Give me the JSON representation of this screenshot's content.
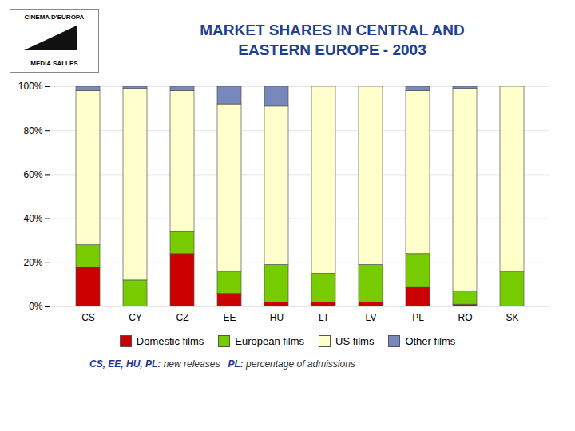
{
  "chart_data": {
    "type": "bar",
    "stacked": true,
    "title": "MARKET SHARES IN CENTRAL AND",
    "subtitle": "EASTERN EUROPE - 2003",
    "categories": [
      "CS",
      "CY",
      "CZ",
      "EE",
      "HU",
      "LT",
      "LV",
      "PL",
      "RO",
      "SK"
    ],
    "series": [
      {
        "name": "Domestic films",
        "color": "#cc0000",
        "values": [
          18,
          0,
          24,
          6,
          2,
          2,
          2,
          9,
          1,
          0
        ]
      },
      {
        "name": "European films",
        "color": "#77cc00",
        "values": [
          10,
          12,
          10,
          10,
          17,
          13,
          17,
          15,
          6,
          16
        ]
      },
      {
        "name": "US films",
        "color": "#ffffcc",
        "values": [
          70,
          87,
          64,
          76,
          72,
          85,
          81,
          74,
          92,
          84
        ]
      },
      {
        "name": "Other films",
        "color": "#7788bb",
        "values": [
          2,
          1,
          2,
          8,
          9,
          0,
          0,
          2,
          1,
          0
        ]
      }
    ],
    "ylim": [
      0,
      100
    ],
    "yticks": [
      {
        "value": 0,
        "label": "0%"
      },
      {
        "value": 20,
        "label": "20%"
      },
      {
        "value": 40,
        "label": "40%"
      },
      {
        "value": 60,
        "label": "60%"
      },
      {
        "value": 80,
        "label": "80%"
      },
      {
        "value": 100,
        "label": "100%"
      }
    ],
    "grid": true,
    "legend": "bottom",
    "annotations": [
      "CS, EE, HU, PL:",
      "new releases",
      "PL:",
      "percentage of admissions",
      "CINEMA D'EUROPA",
      "MEDIA SALLES"
    ]
  }
}
